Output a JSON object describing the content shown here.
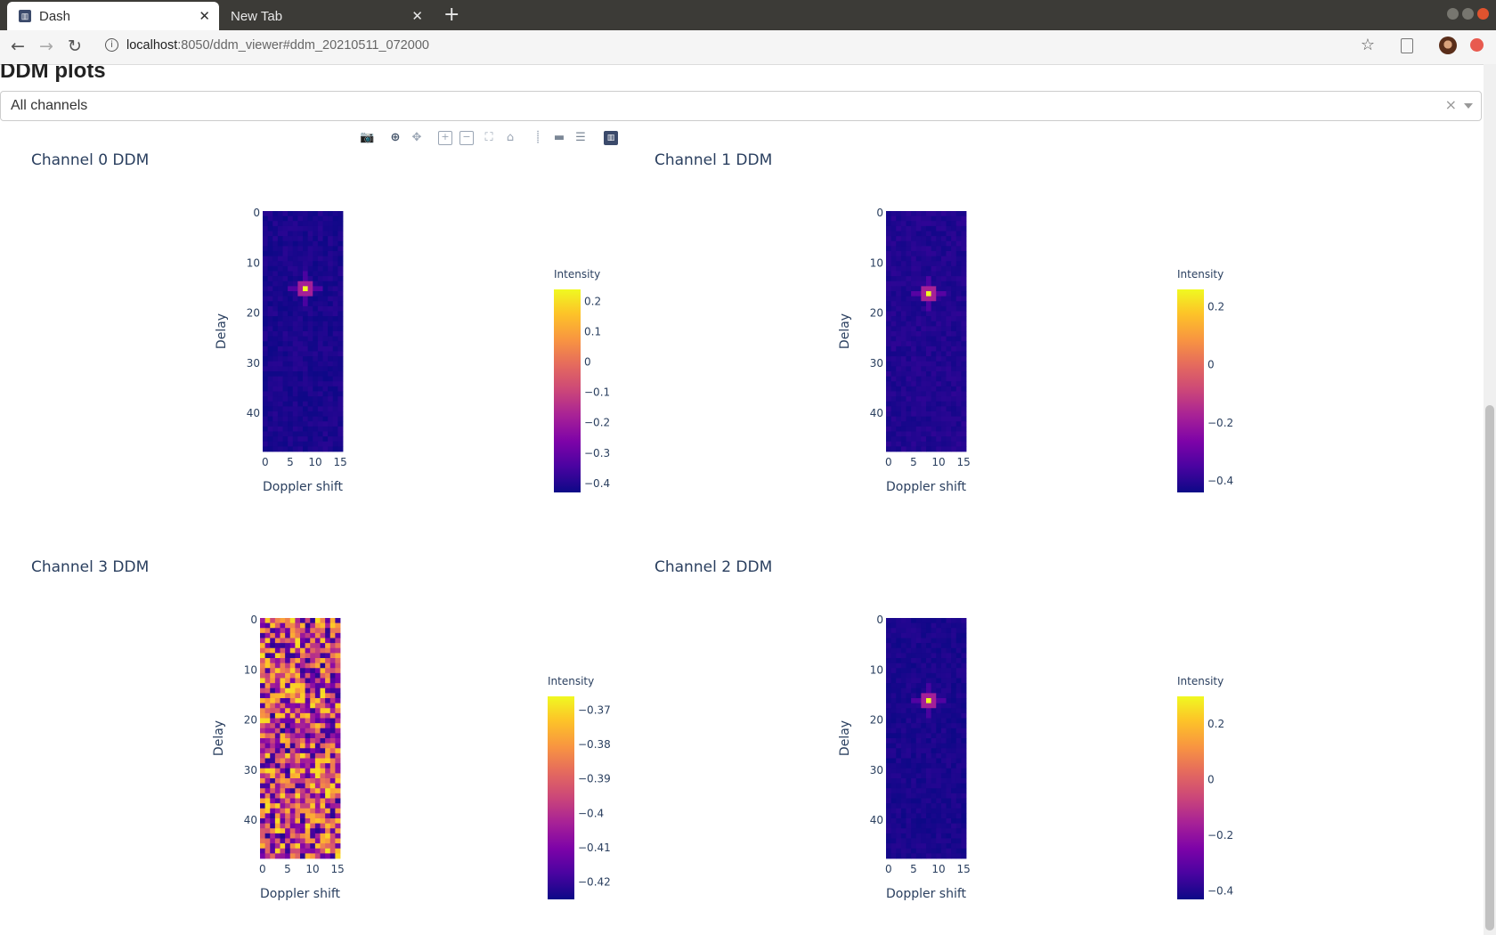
{
  "browser": {
    "tabs": [
      {
        "title": "Dash",
        "active": true
      },
      {
        "title": "New Tab",
        "active": false
      }
    ],
    "url_host": "localhost",
    "url_path": ":8050/ddm_viewer#ddm_20210511_072000"
  },
  "page": {
    "heading": "DDM plots",
    "channel_select": {
      "value": "All channels"
    }
  },
  "modebar_icons": [
    "camera-icon",
    "zoom-icon",
    "pan-icon",
    "zoom-in-icon",
    "zoom-out-icon",
    "autoscale-icon",
    "reset-axes-icon",
    "spike-lines-icon",
    "hover-closest-icon",
    "hover-compare-icon",
    "plotly-logo-icon"
  ],
  "chart_data": [
    {
      "type": "heatmap",
      "title": "Channel 0 DDM",
      "xlabel": "Doppler shift",
      "ylabel": "Delay",
      "x_ticks": [
        0,
        5,
        10,
        15
      ],
      "y_ticks": [
        0,
        10,
        20,
        30,
        40
      ],
      "xlim": [
        0,
        15
      ],
      "ylim": [
        47,
        0
      ],
      "colorbar_title": "Intensity",
      "colorbar_ticks": [
        "0.2",
        "0.1",
        "0",
        "−0.1",
        "−0.2",
        "−0.3",
        "−0.4"
      ],
      "colorbar_tick_values": [
        0.2,
        0.1,
        0,
        -0.1,
        -0.2,
        -0.3,
        -0.4
      ],
      "zmin": -0.43,
      "zmax": 0.24,
      "colorscale": "plasma",
      "pattern": "peak",
      "peak": {
        "doppler": 8,
        "delay": 15,
        "value": 0.24
      },
      "background": -0.41
    },
    {
      "type": "heatmap",
      "title": "Channel 1 DDM",
      "xlabel": "Doppler shift",
      "ylabel": "Delay",
      "x_ticks": [
        0,
        5,
        10,
        15
      ],
      "y_ticks": [
        0,
        10,
        20,
        30,
        40
      ],
      "xlim": [
        0,
        15
      ],
      "ylim": [
        47,
        0
      ],
      "colorbar_title": "Intensity",
      "colorbar_ticks": [
        "0.2",
        "0",
        "−0.2",
        "−0.4"
      ],
      "colorbar_tick_values": [
        0.2,
        0,
        -0.2,
        -0.4
      ],
      "zmin": -0.44,
      "zmax": 0.26,
      "colorscale": "plasma",
      "pattern": "peak",
      "peak": {
        "doppler": 8,
        "delay": 16,
        "value": 0.26
      },
      "background": -0.41
    },
    {
      "type": "heatmap",
      "title": "Channel 3 DDM",
      "xlabel": "Doppler shift",
      "ylabel": "Delay",
      "x_ticks": [
        0,
        5,
        10,
        15
      ],
      "y_ticks": [
        0,
        10,
        20,
        30,
        40
      ],
      "xlim": [
        0,
        15
      ],
      "ylim": [
        47,
        0
      ],
      "colorbar_title": "Intensity",
      "colorbar_ticks": [
        "−0.37",
        "−0.38",
        "−0.39",
        "−0.4",
        "−0.41",
        "−0.42"
      ],
      "colorbar_tick_values": [
        -0.37,
        -0.38,
        -0.39,
        -0.4,
        -0.41,
        -0.42
      ],
      "zmin": -0.425,
      "zmax": -0.366,
      "colorscale": "plasma",
      "pattern": "noise",
      "background": -0.395
    },
    {
      "type": "heatmap",
      "title": "Channel 2 DDM",
      "xlabel": "Doppler shift",
      "ylabel": "Delay",
      "x_ticks": [
        0,
        5,
        10,
        15
      ],
      "y_ticks": [
        0,
        10,
        20,
        30,
        40
      ],
      "xlim": [
        0,
        15
      ],
      "ylim": [
        47,
        0
      ],
      "colorbar_title": "Intensity",
      "colorbar_ticks": [
        "0.2",
        "0",
        "−0.2",
        "−0.4"
      ],
      "colorbar_tick_values": [
        0.2,
        0,
        -0.2,
        -0.4
      ],
      "zmin": -0.43,
      "zmax": 0.3,
      "colorscale": "plasma",
      "pattern": "peak",
      "peak": {
        "doppler": 8,
        "delay": 16,
        "value": 0.3
      },
      "background": -0.41
    }
  ]
}
